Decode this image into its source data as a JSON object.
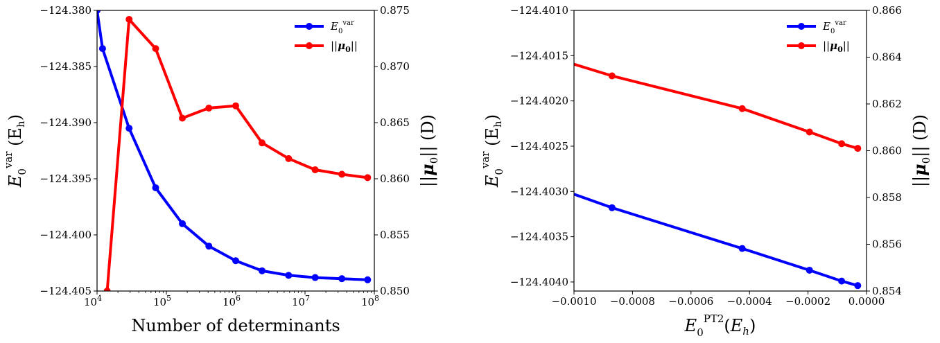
{
  "chart_data": [
    {
      "type": "line",
      "xscale": "log",
      "xlim": [
        10000,
        100000000
      ],
      "x_ticks": [
        10000,
        100000,
        1000000,
        10000000,
        100000000
      ],
      "x_tick_labels": [
        "10^4",
        "10^5",
        "10^6",
        "10^7",
        "10^8"
      ],
      "xlabel": "Number of determinants",
      "ylabel_left": "E_0^var (E_h)",
      "ylabel_right": "||μ_0|| (D)",
      "ylim_left": [
        -124.405,
        -124.38
      ],
      "y_ticks_left": [
        "−124.380",
        "−124.385",
        "−124.390",
        "−124.395",
        "−124.400",
        "−124.405"
      ],
      "y_tick_values_left": [
        -124.38,
        -124.385,
        -124.39,
        -124.395,
        -124.4,
        -124.405
      ],
      "ylim_right": [
        0.85,
        0.875
      ],
      "y_ticks_right": [
        "0.875",
        "0.870",
        "0.865",
        "0.860",
        "0.855",
        "0.850"
      ],
      "y_tick_values_right": [
        0.875,
        0.87,
        0.865,
        0.86,
        0.855,
        0.85
      ],
      "legend_position": "top-right",
      "series": [
        {
          "name": "E_0^var",
          "axis": "left",
          "color": "#0000ff",
          "x": [
            10000,
            12000,
            29000,
            70000,
            170000,
            410000,
            1000000,
            2400000,
            5800000,
            14000000,
            34000000,
            80000000
          ],
          "y": [
            -124.38,
            -124.3834,
            -124.3905,
            -124.3958,
            -124.399,
            -124.401,
            -124.4023,
            -124.4032,
            -124.4036,
            -124.4038,
            -124.4039,
            -124.404
          ]
        },
        {
          "name": "||μ_0||",
          "axis": "right",
          "color": "#ff0000",
          "x": [
            14000,
            29000,
            70000,
            170000,
            410000,
            1000000,
            2400000,
            5800000,
            14000000,
            34000000,
            80000000
          ],
          "y": [
            0.85,
            0.8742,
            0.8716,
            0.8654,
            0.8663,
            0.8665,
            0.8632,
            0.8618,
            0.8608,
            0.8604,
            0.8601
          ]
        }
      ]
    },
    {
      "type": "line",
      "xscale": "linear",
      "xlim": [
        -0.001,
        0.0
      ],
      "x_ticks": [
        -0.001,
        -0.0008,
        -0.0006,
        -0.0004,
        -0.0002,
        0.0
      ],
      "x_tick_labels": [
        "−0.0010",
        "−0.0008",
        "−0.0006",
        "−0.0004",
        "−0.0002",
        "0.0000"
      ],
      "xlabel": "E_0^PT2 (E_h)",
      "ylabel_left": "E_0^var (E_h)",
      "ylabel_right": "||μ_0|| (D)",
      "ylim_left": [
        -124.4041,
        -124.401
      ],
      "y_ticks_left": [
        "−124.4010",
        "−124.4015",
        "−124.4020",
        "−124.4025",
        "−124.4030",
        "−124.4035",
        "−124.4040"
      ],
      "y_tick_values_left": [
        -124.401,
        -124.4015,
        -124.402,
        -124.4025,
        -124.403,
        -124.4035,
        -124.404
      ],
      "ylim_right": [
        0.854,
        0.866
      ],
      "y_ticks_right": [
        "0.866",
        "0.864",
        "0.862",
        "0.860",
        "0.858",
        "0.856",
        "0.854"
      ],
      "y_tick_values_right": [
        0.866,
        0.864,
        0.862,
        0.86,
        0.858,
        0.856,
        0.854
      ],
      "legend_position": "top-right",
      "series": [
        {
          "name": "E_0^var",
          "axis": "left",
          "color": "#0000ff",
          "x": [
            -0.001,
            -0.00087,
            -0.000425,
            -0.000195,
            -8.5e-05,
            -3e-05
          ],
          "y": [
            -124.40303,
            -124.40318,
            -124.40363,
            -124.40387,
            -124.40399,
            -124.40404
          ],
          "markers": [
            false,
            true,
            true,
            true,
            true,
            true
          ]
        },
        {
          "name": "||μ_0||",
          "axis": "right",
          "color": "#ff0000",
          "x": [
            -0.001,
            -0.00087,
            -0.000425,
            -0.000195,
            -8.5e-05,
            -3e-05
          ],
          "y": [
            0.8637,
            0.8632,
            0.8618,
            0.8608,
            0.8603,
            0.8601
          ],
          "markers": [
            false,
            true,
            true,
            true,
            true,
            true
          ]
        }
      ]
    }
  ]
}
